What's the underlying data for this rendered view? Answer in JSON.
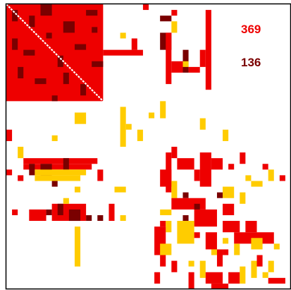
{
  "colors": {
    "red": "#ee0000",
    "dark": "#7a0000",
    "yellow": "#ffcc00",
    "diagonal": "#ffffff",
    "frame": "#000000",
    "background": "#ffffff"
  },
  "legend": {
    "red_count": "369",
    "dark_count": "136"
  },
  "chart_data": {
    "type": "heatmap",
    "size": 50,
    "diagonal": [
      0,
      17
    ],
    "dense_block": {
      "rows": [
        0,
        17
      ],
      "cols": [
        0,
        17
      ],
      "color": "red"
    },
    "rects": [
      {
        "r": [
          1,
          3
        ],
        "c": [
          1,
          2
        ],
        "color": "dark"
      },
      {
        "r": [
          2,
          4
        ],
        "c": [
          4,
          5
        ],
        "color": "dark"
      },
      {
        "r": [
          0,
          2
        ],
        "c": [
          6,
          8
        ],
        "color": "dark"
      },
      {
        "r": [
          3,
          5
        ],
        "c": [
          10,
          12
        ],
        "color": "dark"
      },
      {
        "r": [
          1,
          2
        ],
        "c": [
          14,
          16
        ],
        "color": "dark"
      },
      {
        "r": [
          6,
          8
        ],
        "c": [
          1,
          2
        ],
        "color": "dark"
      },
      {
        "r": [
          8,
          9
        ],
        "c": [
          3,
          5
        ],
        "color": "dark"
      },
      {
        "r": [
          5,
          6
        ],
        "c": [
          7,
          8
        ],
        "color": "dark"
      },
      {
        "r": [
          9,
          11
        ],
        "c": [
          9,
          10
        ],
        "color": "dark"
      },
      {
        "r": [
          7,
          8
        ],
        "c": [
          12,
          14
        ],
        "color": "dark"
      },
      {
        "r": [
          11,
          13
        ],
        "c": [
          2,
          3
        ],
        "color": "dark"
      },
      {
        "r": [
          13,
          14
        ],
        "c": [
          5,
          7
        ],
        "color": "dark"
      },
      {
        "r": [
          12,
          14
        ],
        "c": [
          10,
          11
        ],
        "color": "dark"
      },
      {
        "r": [
          14,
          16
        ],
        "c": [
          13,
          14
        ],
        "color": "dark"
      },
      {
        "r": [
          10,
          11
        ],
        "c": [
          15,
          17
        ],
        "color": "dark"
      },
      {
        "r": [
          16,
          17
        ],
        "c": [
          8,
          9
        ],
        "color": "dark"
      },
      {
        "r": [
          4,
          5
        ],
        "c": [
          15,
          16
        ],
        "color": "dark"
      },
      {
        "r": [
          8,
          9
        ],
        "c": [
          17,
          24
        ],
        "color": "red"
      },
      {
        "r": [
          0,
          1
        ],
        "c": [
          24,
          25
        ],
        "color": "red"
      },
      {
        "r": [
          1,
          2
        ],
        "c": [
          29,
          30
        ],
        "color": "red"
      },
      {
        "r": [
          2,
          3
        ],
        "c": [
          27,
          29
        ],
        "color": "dark"
      },
      {
        "r": [
          5,
          8
        ],
        "c": [
          27,
          29
        ],
        "color": "dark"
      },
      {
        "r": [
          5,
          14
        ],
        "c": [
          28,
          29
        ],
        "color": "red"
      },
      {
        "r": [
          10,
          12
        ],
        "c": [
          29,
          31
        ],
        "color": "red"
      },
      {
        "r": [
          8,
          12
        ],
        "c": [
          31,
          32
        ],
        "color": "dark"
      },
      {
        "r": [
          11,
          12
        ],
        "c": [
          32,
          34
        ],
        "color": "red"
      },
      {
        "r": [
          3,
          5
        ],
        "c": [
          29,
          30
        ],
        "color": "yellow"
      },
      {
        "r": [
          10,
          11
        ],
        "c": [
          31,
          32
        ],
        "color": "yellow"
      },
      {
        "r": [
          1,
          15
        ],
        "c": [
          35,
          36
        ],
        "color": "red"
      },
      {
        "r": [
          8,
          11
        ],
        "c": [
          34,
          35
        ],
        "color": "red"
      },
      {
        "r": [
          5,
          6
        ],
        "c": [
          20,
          21
        ],
        "color": "yellow"
      },
      {
        "r": [
          6,
          8
        ],
        "c": [
          22,
          23
        ],
        "color": "red"
      },
      {
        "r": [
          19,
          21
        ],
        "c": [
          12,
          14
        ],
        "color": "yellow"
      },
      {
        "r": [
          18,
          25
        ],
        "c": [
          20,
          21
        ],
        "color": "yellow"
      },
      {
        "r": [
          21,
          22
        ],
        "c": [
          21,
          22
        ],
        "color": "yellow"
      },
      {
        "r": [
          22,
          24
        ],
        "c": [
          23,
          24
        ],
        "color": "yellow"
      },
      {
        "r": [
          19,
          20
        ],
        "c": [
          25,
          26
        ],
        "color": "yellow"
      },
      {
        "r": [
          20,
          22
        ],
        "c": [
          34,
          35
        ],
        "color": "yellow"
      },
      {
        "r": [
          22,
          24
        ],
        "c": [
          38,
          39
        ],
        "color": "yellow"
      },
      {
        "r": [
          17,
          20
        ],
        "c": [
          27,
          28
        ],
        "color": "yellow"
      },
      {
        "r": [
          22,
          24
        ],
        "c": [
          0,
          1
        ],
        "color": "red"
      },
      {
        "r": [
          25,
          27
        ],
        "c": [
          2,
          3
        ],
        "color": "yellow"
      },
      {
        "r": [
          23,
          24
        ],
        "c": [
          8,
          9
        ],
        "color": "yellow"
      },
      {
        "r": [
          27,
          28
        ],
        "c": [
          3,
          16
        ],
        "color": "red"
      },
      {
        "r": [
          28,
          29
        ],
        "c": [
          3,
          15
        ],
        "color": "red"
      },
      {
        "r": [
          28,
          30
        ],
        "c": [
          4,
          5
        ],
        "color": "dark"
      },
      {
        "r": [
          28,
          30
        ],
        "c": [
          6,
          8
        ],
        "color": "dark"
      },
      {
        "r": [
          27,
          29
        ],
        "c": [
          10,
          11
        ],
        "color": "dark"
      },
      {
        "r": [
          29,
          30
        ],
        "c": [
          5,
          14
        ],
        "color": "yellow"
      },
      {
        "r": [
          30,
          31
        ],
        "c": [
          5,
          13
        ],
        "color": "yellow"
      },
      {
        "r": [
          31,
          32
        ],
        "c": [
          8,
          9
        ],
        "color": "dark"
      },
      {
        "r": [
          32,
          33
        ],
        "c": [
          12,
          13
        ],
        "color": "yellow"
      },
      {
        "r": [
          29,
          31
        ],
        "c": [
          16,
          17
        ],
        "color": "red"
      },
      {
        "r": [
          32,
          33
        ],
        "c": [
          19,
          21
        ],
        "color": "yellow"
      },
      {
        "r": [
          29,
          30
        ],
        "c": [
          0,
          1
        ],
        "color": "red"
      },
      {
        "r": [
          30,
          31
        ],
        "c": [
          2,
          3
        ],
        "color": "red"
      },
      {
        "r": [
          36,
          37
        ],
        "c": [
          1,
          2
        ],
        "color": "red"
      },
      {
        "r": [
          36,
          38
        ],
        "c": [
          4,
          7
        ],
        "color": "red"
      },
      {
        "r": [
          36,
          37
        ],
        "c": [
          7,
          8
        ],
        "color": "dark"
      },
      {
        "r": [
          35,
          38
        ],
        "c": [
          8,
          14
        ],
        "color": "red"
      },
      {
        "r": [
          35,
          37
        ],
        "c": [
          9,
          10
        ],
        "color": "dark"
      },
      {
        "r": [
          36,
          38
        ],
        "c": [
          11,
          13
        ],
        "color": "dark"
      },
      {
        "r": [
          37,
          38
        ],
        "c": [
          14,
          15
        ],
        "color": "dark"
      },
      {
        "r": [
          37,
          38
        ],
        "c": [
          16,
          17
        ],
        "color": "dark"
      },
      {
        "r": [
          35,
          38
        ],
        "c": [
          18,
          19
        ],
        "color": "red"
      },
      {
        "r": [
          37,
          38
        ],
        "c": [
          20,
          21
        ],
        "color": "yellow"
      },
      {
        "r": [
          34,
          35
        ],
        "c": [
          10,
          11
        ],
        "color": "yellow"
      },
      {
        "r": [
          39,
          46
        ],
        "c": [
          12,
          13
        ],
        "color": "yellow"
      },
      {
        "r": [
          26,
          33
        ],
        "c": [
          28,
          29
        ],
        "color": "red"
      },
      {
        "r": [
          25,
          27
        ],
        "c": [
          29,
          30
        ],
        "color": "red"
      },
      {
        "r": [
          27,
          29
        ],
        "c": [
          30,
          33
        ],
        "color": "red"
      },
      {
        "r": [
          29,
          32
        ],
        "c": [
          27,
          29
        ],
        "color": "red"
      },
      {
        "r": [
          31,
          34
        ],
        "c": [
          29,
          30
        ],
        "color": "yellow"
      },
      {
        "r": [
          26,
          32
        ],
        "c": [
          34,
          36
        ],
        "color": "red"
      },
      {
        "r": [
          27,
          29
        ],
        "c": [
          36,
          38
        ],
        "color": "red"
      },
      {
        "r": [
          29,
          31
        ],
        "c": [
          33,
          34
        ],
        "color": "red"
      },
      {
        "r": [
          28,
          29
        ],
        "c": [
          39,
          40
        ],
        "color": "red"
      },
      {
        "r": [
          26,
          28
        ],
        "c": [
          41,
          42
        ],
        "color": "red"
      },
      {
        "r": [
          30,
          31
        ],
        "c": [
          42,
          43
        ],
        "color": "yellow"
      },
      {
        "r": [
          29,
          31
        ],
        "c": [
          46,
          47
        ],
        "color": "yellow"
      },
      {
        "r": [
          32,
          34
        ],
        "c": [
          38,
          40
        ],
        "color": "yellow"
      },
      {
        "r": [
          31,
          32
        ],
        "c": [
          43,
          45
        ],
        "color": "yellow"
      },
      {
        "r": [
          28,
          29
        ],
        "c": [
          45,
          46
        ],
        "color": "red"
      },
      {
        "r": [
          30,
          31
        ],
        "c": [
          48,
          49
        ],
        "color": "red"
      },
      {
        "r": [
          33,
          34
        ],
        "c": [
          31,
          32
        ],
        "color": "dark"
      },
      {
        "r": [
          33,
          34
        ],
        "c": [
          37,
          38
        ],
        "color": "dark"
      },
      {
        "r": [
          34,
          36
        ],
        "c": [
          29,
          35
        ],
        "color": "red"
      },
      {
        "r": [
          36,
          39
        ],
        "c": [
          33,
          37
        ],
        "color": "red"
      },
      {
        "r": [
          35,
          37
        ],
        "c": [
          38,
          40
        ],
        "color": "red"
      },
      {
        "r": [
          33,
          35
        ],
        "c": [
          41,
          42
        ],
        "color": "yellow"
      },
      {
        "r": [
          36,
          37
        ],
        "c": [
          27,
          29
        ],
        "color": "yellow"
      },
      {
        "r": [
          38,
          39
        ],
        "c": [
          27,
          28
        ],
        "color": "red"
      },
      {
        "r": [
          37,
          38
        ],
        "c": [
          31,
          32
        ],
        "color": "dark"
      },
      {
        "r": [
          35,
          36
        ],
        "c": [
          33,
          34
        ],
        "color": "dark"
      },
      {
        "r": [
          38,
          40
        ],
        "c": [
          28,
          29
        ],
        "color": "yellow"
      },
      {
        "r": [
          38,
          42
        ],
        "c": [
          30,
          33
        ],
        "color": "yellow"
      },
      {
        "r": [
          39,
          44
        ],
        "c": [
          26,
          28
        ],
        "color": "red"
      },
      {
        "r": [
          40,
          41
        ],
        "c": [
          33,
          34
        ],
        "color": "red"
      },
      {
        "r": [
          42,
          44
        ],
        "c": [
          27,
          29
        ],
        "color": "yellow"
      },
      {
        "r": [
          44,
          46
        ],
        "c": [
          27,
          28
        ],
        "color": "red"
      },
      {
        "r": [
          40,
          43
        ],
        "c": [
          35,
          37
        ],
        "color": "red"
      },
      {
        "r": [
          38,
          40
        ],
        "c": [
          38,
          41
        ],
        "color": "red"
      },
      {
        "r": [
          38,
          40
        ],
        "c": [
          42,
          44
        ],
        "color": "red"
      },
      {
        "r": [
          40,
          42
        ],
        "c": [
          40,
          47
        ],
        "color": "red"
      },
      {
        "r": [
          41,
          43
        ],
        "c": [
          43,
          45
        ],
        "color": "yellow"
      },
      {
        "r": [
          42,
          44
        ],
        "c": [
          40,
          41
        ],
        "color": "yellow"
      },
      {
        "r": [
          43,
          44
        ],
        "c": [
          36,
          37
        ],
        "color": "yellow"
      },
      {
        "r": [
          42,
          43
        ],
        "c": [
          47,
          48
        ],
        "color": "yellow"
      },
      {
        "r": [
          43,
          46
        ],
        "c": [
          37,
          38
        ],
        "color": "red"
      },
      {
        "r": [
          45,
          46
        ],
        "c": [
          32,
          33
        ],
        "color": "yellow"
      },
      {
        "r": [
          45,
          48
        ],
        "c": [
          34,
          35
        ],
        "color": "yellow"
      },
      {
        "r": [
          47,
          49
        ],
        "c": [
          35,
          38
        ],
        "color": "red"
      },
      {
        "r": [
          47,
          49
        ],
        "c": [
          39,
          41
        ],
        "color": "red"
      },
      {
        "r": [
          46,
          49
        ],
        "c": [
          41,
          42
        ],
        "color": "yellow"
      },
      {
        "r": [
          45,
          48
        ],
        "c": [
          43,
          44
        ],
        "color": "yellow"
      },
      {
        "r": [
          47,
          48
        ],
        "c": [
          45,
          46
        ],
        "color": "yellow"
      },
      {
        "r": [
          48,
          49
        ],
        "c": [
          46,
          49
        ],
        "color": "red"
      },
      {
        "r": [
          45,
          47
        ],
        "c": [
          46,
          47
        ],
        "color": "yellow"
      },
      {
        "r": [
          43,
          44
        ],
        "c": [
          38,
          39
        ],
        "color": "red"
      },
      {
        "r": [
          49,
          50
        ],
        "c": [
          36,
          39
        ],
        "color": "red"
      },
      {
        "r": [
          47,
          49
        ],
        "c": [
          26,
          27
        ],
        "color": "red"
      },
      {
        "r": [
          45,
          47
        ],
        "c": [
          29,
          30
        ],
        "color": "red"
      },
      {
        "r": [
          47,
          50
        ],
        "c": [
          32,
          33
        ],
        "color": "red"
      },
      {
        "r": [
          41,
          42
        ],
        "c": [
          38,
          39
        ],
        "color": "yellow"
      },
      {
        "r": [
          44,
          46
        ],
        "c": [
          44,
          45
        ],
        "color": "red"
      }
    ]
  }
}
